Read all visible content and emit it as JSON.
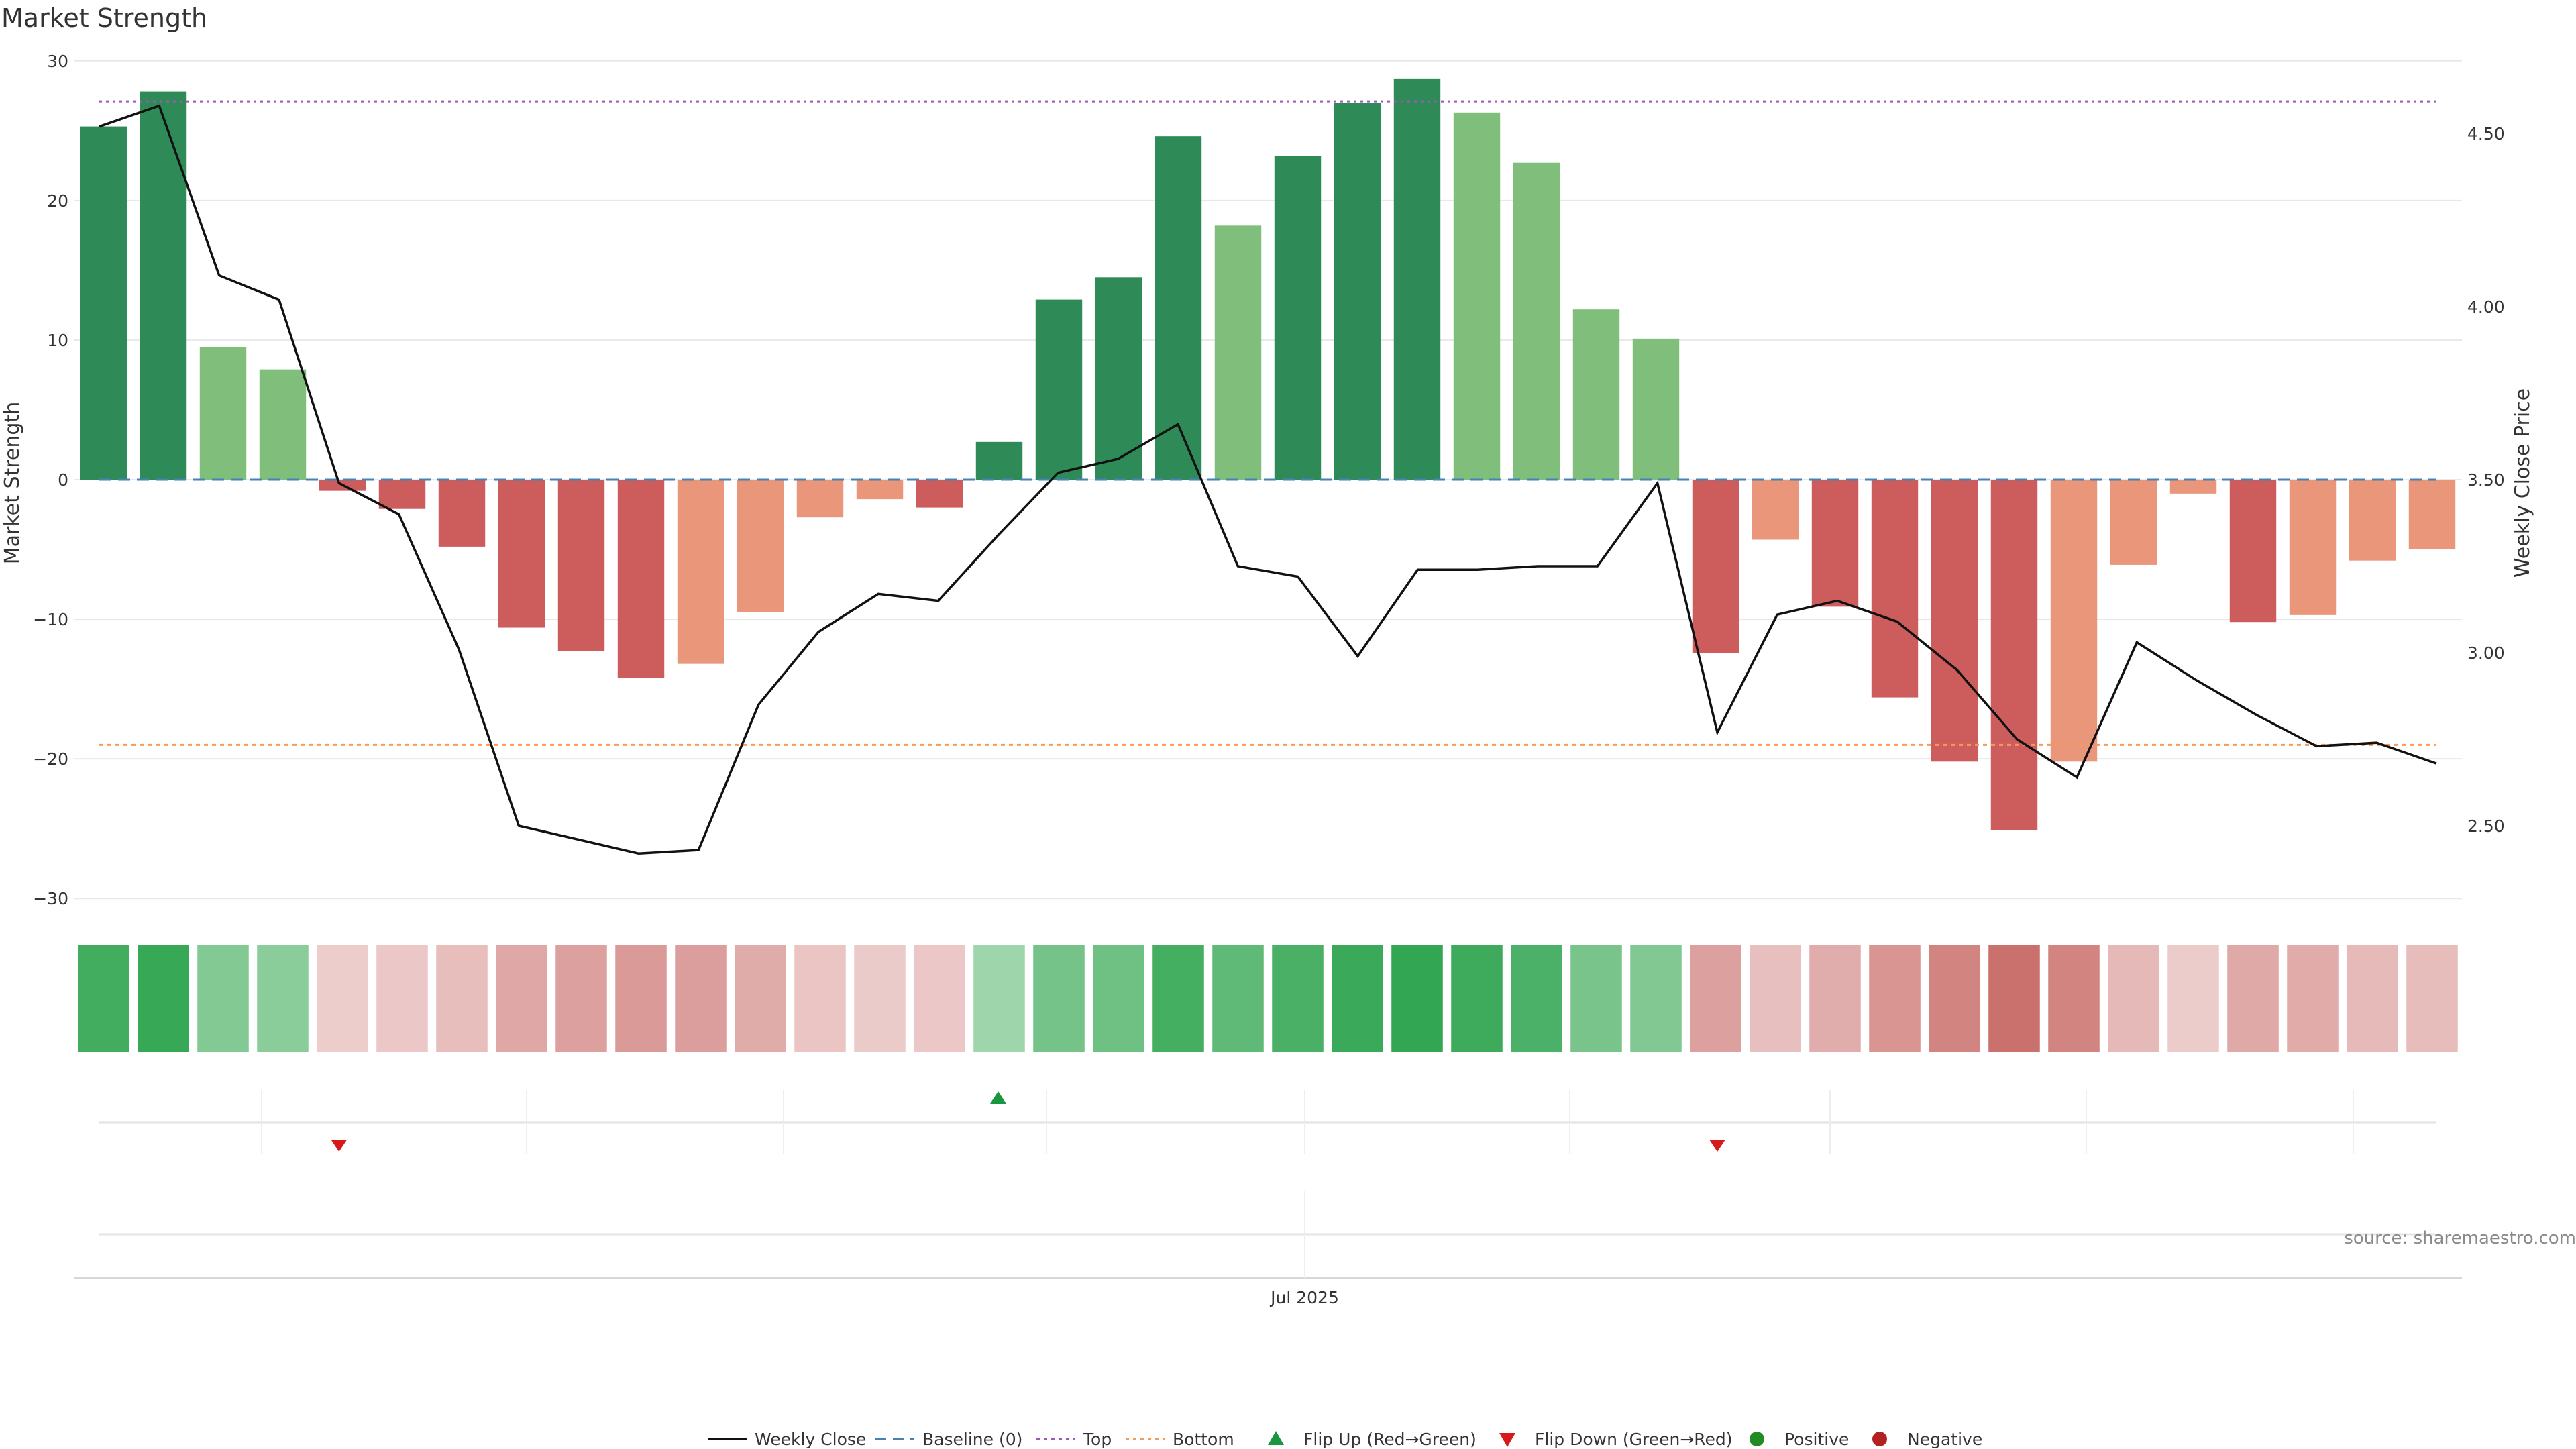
{
  "chart_data": {
    "type": "bar",
    "title": "Market Strength",
    "ylabel": "Market Strength",
    "y2label": "Weekly Close Price",
    "ylim": [
      -31,
      31
    ],
    "y2lim": [
      2.25,
      4.75
    ],
    "yticks": [
      30,
      20,
      10,
      0,
      -10,
      -20,
      -30
    ],
    "y2ticks": [
      2.5,
      3.0,
      3.5,
      4.0,
      4.5
    ],
    "ytick_labels": [
      "30",
      "20",
      "10",
      "0",
      "−10",
      "−20",
      "−30"
    ],
    "y2tick_labels": [
      "2.50",
      "3.00",
      "3.50",
      "4.00",
      "4.50"
    ],
    "x_tick_label": "Jul 2025",
    "source": "source: sharemaestro.com",
    "strength": [
      25.3,
      27.8,
      9.5,
      7.9,
      -0.8,
      -2.1,
      -4.8,
      -10.6,
      -12.3,
      -14.2,
      -13.2,
      -9.5,
      -2.7,
      -1.4,
      -2.0,
      2.7,
      12.9,
      14.5,
      24.6,
      18.2,
      23.2,
      27.0,
      28.7,
      26.3,
      22.7,
      12.2,
      10.1,
      -12.4,
      -4.3,
      -9.1,
      -15.6,
      -20.2,
      -25.1,
      -20.2,
      -6.1,
      -1.0,
      -10.2,
      -9.7,
      -5.8,
      -5.0
    ],
    "close": [
      4.52,
      4.58,
      4.09,
      4.02,
      3.49,
      3.4,
      3.01,
      2.5,
      2.46,
      2.42,
      2.43,
      2.85,
      3.06,
      3.17,
      3.15,
      3.34,
      3.52,
      3.56,
      3.66,
      3.25,
      3.22,
      2.99,
      3.24,
      3.24,
      3.25,
      3.25,
      3.49,
      2.77,
      3.11,
      3.15,
      3.09,
      2.95,
      2.75,
      2.64,
      3.03,
      2.92,
      2.82,
      2.73,
      2.74,
      2.68
    ],
    "top_line": 27.1,
    "bottom_line": -19.0,
    "baseline": 0,
    "flip_up_index": [
      15
    ],
    "flip_down_index": [
      4,
      27
    ],
    "colors": {
      "strong_positive": "#2e8b57",
      "weak_positive": "#7fbf7b",
      "strong_negative": "#cd5c5c",
      "weak_negative": "#e9967a",
      "close_line": "#111111",
      "baseline": "#4682b4",
      "top": "#9b59b6",
      "bottom": "#f39c5a",
      "flip_up": "#1a9641",
      "flip_down": "#d7191c",
      "positive": "#228b22",
      "negative": "#b22222",
      "grid": "#e8e8e8"
    },
    "legend": [
      {
        "label": "Weekly Close",
        "icon": "solid-line"
      },
      {
        "label": "Baseline (0)",
        "icon": "dashed-line"
      },
      {
        "label": "Top",
        "icon": "dotted-line"
      },
      {
        "label": "Bottom",
        "icon": "dotted-line"
      },
      {
        "label": "Flip Up (Red→Green)",
        "icon": "triangle-up"
      },
      {
        "label": "Flip Down (Green→Red)",
        "icon": "triangle-down"
      },
      {
        "label": "Positive",
        "icon": "circle"
      },
      {
        "label": "Negative",
        "icon": "circle"
      }
    ],
    "legend_position": "bottom"
  }
}
